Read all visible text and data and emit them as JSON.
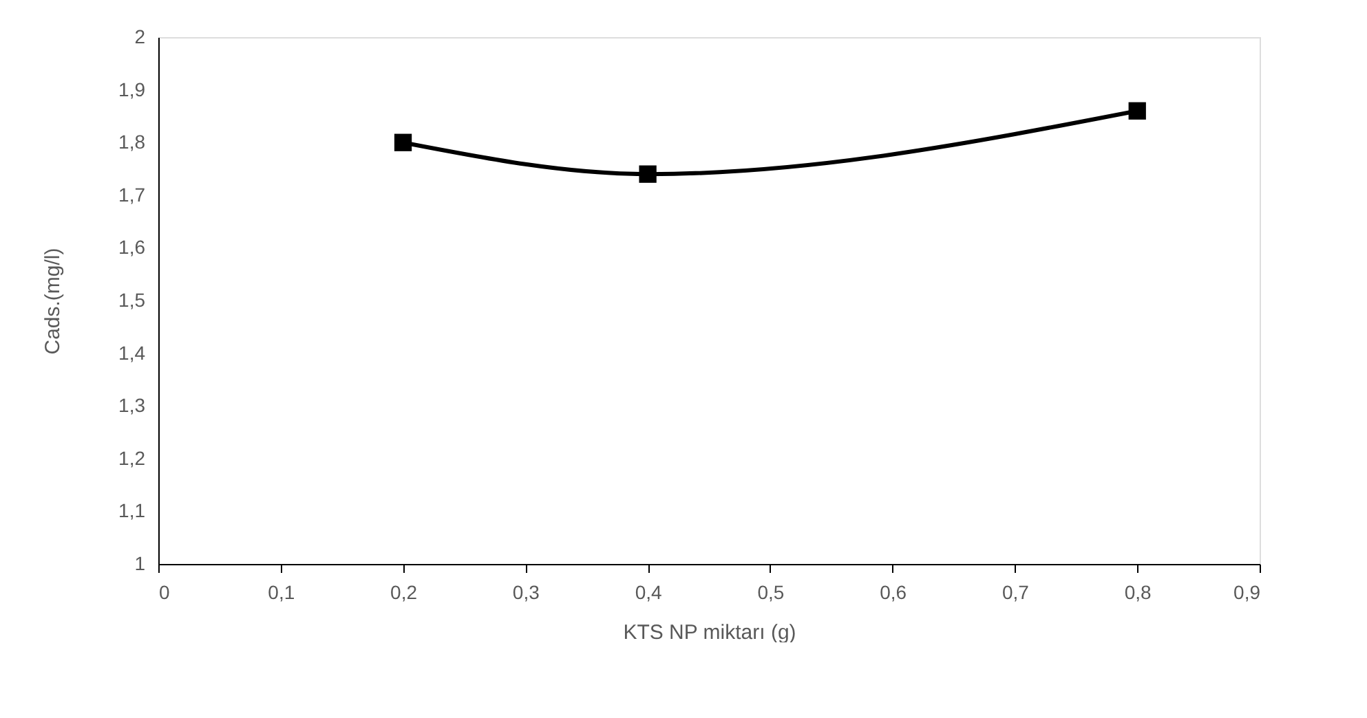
{
  "chart_data": {
    "type": "line",
    "xlabel": "KTS NP miktarı (g)",
    "ylabel": "Cads.(mg/l)",
    "x": [
      0.2,
      0.4,
      0.8
    ],
    "series": [
      {
        "color": "#000000",
        "values": [
          1.8,
          1.74,
          1.86
        ]
      }
    ],
    "xlim": [
      0,
      0.9
    ],
    "xticks": [
      0,
      {
        "value": 0.1,
        "label": "0,1"
      },
      {
        "value": 0.2,
        "label": "0,2"
      },
      {
        "value": 0.3,
        "label": "0,3"
      },
      {
        "value": 0.4,
        "label": "0,4"
      },
      {
        "value": 0.5,
        "label": "0,5"
      },
      {
        "value": 0.6,
        "label": "0,6"
      },
      {
        "value": 0.7,
        "label": "0,7"
      },
      {
        "value": 0.8,
        "label": "0,8"
      },
      {
        "value": 0.9,
        "label": "0,9"
      }
    ],
    "ylim": [
      1,
      2
    ],
    "yticks": [
      1,
      {
        "value": 1.1,
        "label": "1,1"
      },
      {
        "value": 1.2,
        "label": "1,2"
      },
      {
        "value": 1.3,
        "label": "1,3"
      },
      {
        "value": 1.4,
        "label": "1,4"
      },
      {
        "value": 1.5,
        "label": "1,5"
      },
      {
        "value": 1.6,
        "label": "1,6"
      },
      {
        "value": 1.7,
        "label": "1,7"
      },
      {
        "value": 1.8,
        "label": "1,8"
      },
      {
        "value": 1.9,
        "label": "1,9"
      },
      2
    ],
    "grid": false,
    "marker": "square",
    "line_style": "solid"
  }
}
